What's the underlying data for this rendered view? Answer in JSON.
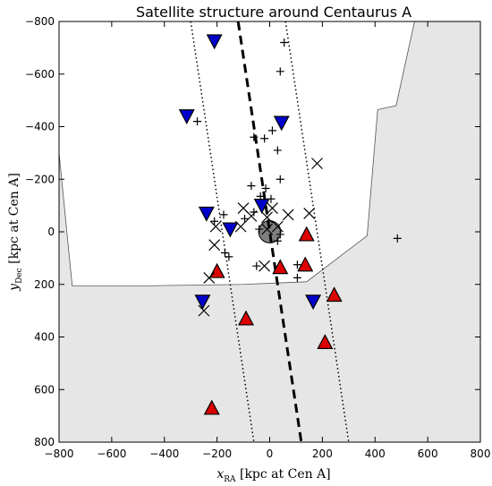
{
  "chart_data": {
    "type": "scatter",
    "title": "Satellite structure around Centaurus A",
    "xlabel": {
      "symbol": "x",
      "subscript": "RA",
      "text": " [kpc at Cen A]"
    },
    "ylabel": {
      "symbol": "y",
      "subscript": "Dec",
      "text": " [kpc at Cen A]"
    },
    "xlim": [
      -800,
      800
    ],
    "ylim": [
      800,
      -800
    ],
    "xticks": [
      -800,
      -600,
      -400,
      -200,
      0,
      200,
      400,
      600,
      800
    ],
    "yticks": [
      -800,
      -600,
      -400,
      -200,
      0,
      200,
      400,
      600,
      800
    ],
    "xtick_labels": [
      "−800",
      "−600",
      "−400",
      "−200",
      "0",
      "200",
      "400",
      "600",
      "800"
    ],
    "ytick_labels": [
      "−800",
      "−600",
      "−400",
      "−200",
      "0",
      "200",
      "400",
      "600",
      "800"
    ],
    "grid": false,
    "colors": {
      "blue": "#0000cc",
      "red": "#dd0000",
      "shade": "#e6e6e6",
      "host": "#808080"
    },
    "uncovered_region_vertices": [
      [
        -800,
        -300
      ],
      [
        -750,
        205
      ],
      [
        -450,
        205
      ],
      [
        -100,
        200
      ],
      [
        140,
        190
      ],
      [
        370,
        15
      ],
      [
        410,
        -465
      ],
      [
        480,
        -480
      ],
      [
        550,
        -800
      ],
      [
        800,
        -800
      ],
      [
        800,
        800
      ],
      [
        -800,
        800
      ]
    ],
    "best_fit_line": {
      "points": [
        [
          -120,
          -800
        ],
        [
          120,
          800
        ]
      ],
      "style": "dashed"
    },
    "band_lines": [
      {
        "points": [
          [
            -300,
            -800
          ],
          [
            -60,
            800
          ]
        ],
        "style": "dotted"
      },
      {
        "points": [
          [
            60,
            -800
          ],
          [
            300,
            800
          ]
        ],
        "style": "dotted"
      }
    ],
    "host_galaxy": {
      "x": 0,
      "y": 0,
      "r": 42
    },
    "series": [
      {
        "marker": "triangle-down",
        "color": "blue",
        "points": [
          [
            -210,
            -725
          ],
          [
            -315,
            -440
          ],
          [
            45,
            -415
          ],
          [
            -240,
            -70
          ],
          [
            -30,
            -100
          ],
          [
            -150,
            -10
          ],
          [
            -255,
            265
          ],
          [
            165,
            265
          ]
        ]
      },
      {
        "marker": "triangle-up",
        "color": "red",
        "points": [
          [
            140,
            10
          ],
          [
            135,
            125
          ],
          [
            40,
            135
          ],
          [
            245,
            240
          ],
          [
            -200,
            150
          ],
          [
            -90,
            330
          ],
          [
            210,
            420
          ],
          [
            -220,
            670
          ]
        ]
      },
      {
        "marker": "cross",
        "points": [
          [
            180,
            -260
          ],
          [
            -100,
            -90
          ],
          [
            10,
            -90
          ],
          [
            -70,
            -60
          ],
          [
            -10,
            -55
          ],
          [
            70,
            -65
          ],
          [
            150,
            -70
          ],
          [
            -205,
            -20
          ],
          [
            -110,
            -20
          ],
          [
            -10,
            -10
          ],
          [
            30,
            -20
          ],
          [
            -210,
            50
          ],
          [
            -20,
            130
          ],
          [
            -230,
            175
          ],
          [
            -250,
            300
          ]
        ]
      },
      {
        "marker": "plus",
        "points": [
          [
            55,
            -720
          ],
          [
            40,
            -610
          ],
          [
            -275,
            -420
          ],
          [
            10,
            -385
          ],
          [
            -20,
            -355
          ],
          [
            -60,
            -360
          ],
          [
            30,
            -310
          ],
          [
            40,
            -200
          ],
          [
            -70,
            -175
          ],
          [
            -15,
            -165
          ],
          [
            -35,
            -135
          ],
          [
            5,
            -125
          ],
          [
            -95,
            -50
          ],
          [
            -175,
            -65
          ],
          [
            -60,
            -75
          ],
          [
            -210,
            -40
          ],
          [
            -40,
            -10
          ],
          [
            30,
            35
          ],
          [
            40,
            10
          ],
          [
            -170,
            80
          ],
          [
            -155,
            95
          ],
          [
            -50,
            130
          ],
          [
            105,
            125
          ],
          [
            105,
            175
          ],
          [
            485,
            25
          ]
        ]
      }
    ]
  }
}
